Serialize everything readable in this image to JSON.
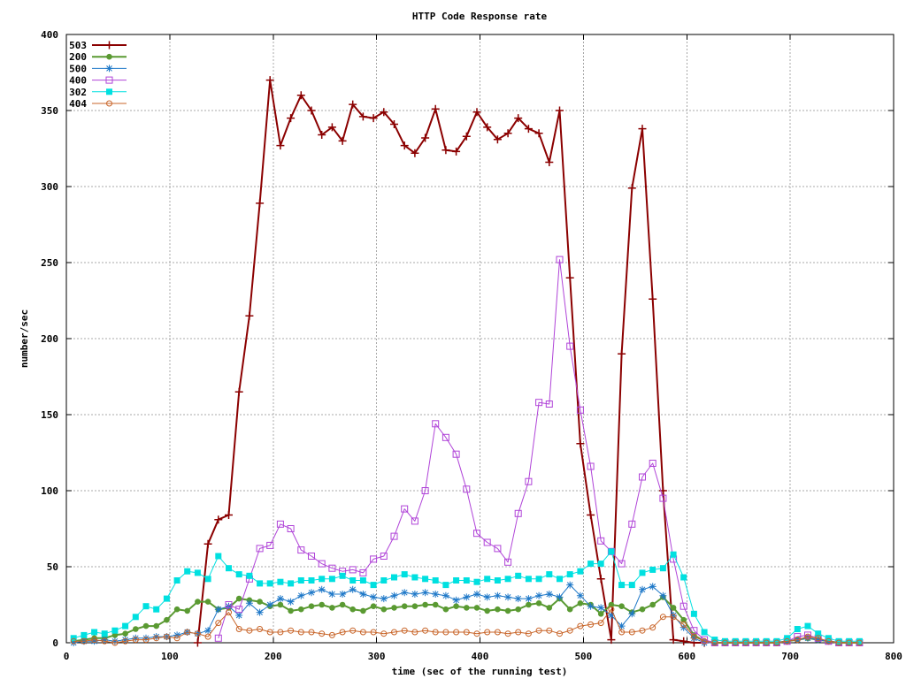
{
  "chart_data": {
    "type": "line",
    "title": "HTTP Code Response rate",
    "xlabel": "time (sec of the running test)",
    "ylabel": "number/sec",
    "xlim": [
      0,
      800
    ],
    "ylim": [
      0,
      400
    ],
    "xticks": [
      0,
      100,
      200,
      300,
      400,
      500,
      600,
      700,
      800
    ],
    "yticks": [
      0,
      50,
      100,
      150,
      200,
      250,
      300,
      350,
      400
    ],
    "grid": true,
    "legend_position": "top-left",
    "x": [
      7,
      17,
      27,
      37,
      47,
      57,
      67,
      77,
      87,
      97,
      107,
      117,
      127,
      137,
      147,
      157,
      167,
      177,
      187,
      197,
      207,
      217,
      227,
      237,
      247,
      257,
      267,
      277,
      287,
      297,
      307,
      317,
      327,
      337,
      347,
      357,
      367,
      377,
      387,
      397,
      407,
      417,
      427,
      437,
      447,
      457,
      467,
      477,
      487,
      497,
      507,
      517,
      527,
      537,
      547,
      557,
      567,
      577,
      587,
      597,
      607,
      617,
      627,
      637,
      647,
      657,
      667,
      677,
      687,
      697,
      707,
      717,
      727,
      737,
      747,
      757,
      767
    ],
    "series": [
      {
        "name": "503",
        "color": "#8b0000",
        "marker": "plus",
        "values": [
          null,
          null,
          null,
          null,
          null,
          null,
          null,
          null,
          null,
          null,
          null,
          null,
          0,
          65,
          81,
          84,
          165,
          215,
          289,
          370,
          327,
          345,
          360,
          350,
          334,
          339,
          330,
          354,
          346,
          345,
          349,
          341,
          327,
          322,
          332,
          351,
          324,
          323,
          333,
          349,
          339,
          331,
          335,
          345,
          338,
          335,
          316,
          350,
          240,
          131,
          84,
          42,
          2,
          190,
          299,
          338,
          226,
          100,
          2,
          1,
          0,
          0,
          null,
          null,
          null,
          null,
          null,
          null,
          null,
          null,
          null,
          null,
          null,
          null,
          null,
          null,
          null
        ]
      },
      {
        "name": "200",
        "color": "#5a9a32",
        "marker": "circle-filled",
        "values": [
          1,
          2,
          3,
          3,
          5,
          6,
          9,
          11,
          11,
          15,
          22,
          21,
          27,
          27,
          22,
          23,
          29,
          28,
          27,
          24,
          25,
          21,
          22,
          24,
          25,
          23,
          25,
          22,
          21,
          24,
          22,
          23,
          24,
          24,
          25,
          25,
          22,
          24,
          23,
          23,
          21,
          22,
          21,
          22,
          25,
          26,
          23,
          29,
          22,
          26,
          25,
          19,
          25,
          24,
          20,
          22,
          25,
          30,
          23,
          15,
          5,
          1,
          0,
          0,
          0,
          0,
          0,
          0,
          0,
          1,
          2,
          3,
          2,
          1,
          0,
          0,
          0
        ]
      },
      {
        "name": "500",
        "color": "#1e78c8",
        "marker": "asterisk",
        "values": [
          0,
          1,
          1,
          2,
          1,
          2,
          3,
          3,
          4,
          4,
          5,
          7,
          6,
          8,
          22,
          24,
          18,
          26,
          20,
          25,
          29,
          27,
          31,
          33,
          35,
          32,
          32,
          35,
          32,
          30,
          29,
          31,
          33,
          32,
          33,
          32,
          31,
          28,
          30,
          32,
          30,
          31,
          30,
          29,
          29,
          31,
          32,
          30,
          38,
          31,
          24,
          23,
          18,
          11,
          19,
          35,
          37,
          31,
          18,
          10,
          3,
          0,
          0,
          0,
          0,
          0,
          0,
          0,
          0,
          1,
          2,
          3,
          2,
          1,
          0,
          0,
          0
        ]
      },
      {
        "name": "400",
        "color": "#b044d8",
        "marker": "square-open",
        "values": [
          null,
          null,
          null,
          null,
          null,
          null,
          null,
          null,
          null,
          null,
          null,
          null,
          null,
          null,
          3,
          25,
          22,
          42,
          62,
          64,
          78,
          75,
          61,
          57,
          52,
          49,
          47,
          48,
          46,
          55,
          57,
          70,
          88,
          80,
          100,
          144,
          135,
          124,
          101,
          72,
          66,
          62,
          53,
          85,
          106,
          158,
          157,
          252,
          195,
          153,
          116,
          67,
          60,
          52,
          78,
          109,
          118,
          95,
          55,
          24,
          8,
          2,
          0,
          0,
          0,
          0,
          0,
          0,
          0,
          1,
          4,
          5,
          3,
          1,
          0,
          0,
          0
        ]
      },
      {
        "name": "302",
        "color": "#00e0e0",
        "marker": "square-filled",
        "values": [
          3,
          5,
          7,
          6,
          8,
          11,
          17,
          24,
          22,
          29,
          41,
          47,
          46,
          42,
          57,
          49,
          45,
          44,
          39,
          39,
          40,
          39,
          41,
          41,
          42,
          42,
          44,
          41,
          41,
          38,
          41,
          43,
          45,
          43,
          42,
          41,
          38,
          41,
          41,
          40,
          42,
          41,
          42,
          44,
          42,
          42,
          45,
          42,
          45,
          47,
          52,
          52,
          60,
          38,
          38,
          46,
          48,
          49,
          58,
          43,
          19,
          7,
          2,
          1,
          1,
          1,
          1,
          1,
          1,
          3,
          9,
          11,
          6,
          3,
          1,
          1,
          1
        ]
      },
      {
        "name": "404",
        "color": "#c86428",
        "marker": "circle-open",
        "values": [
          1,
          1,
          2,
          1,
          0,
          1,
          2,
          2,
          3,
          4,
          3,
          7,
          6,
          4,
          13,
          20,
          9,
          8,
          9,
          7,
          7,
          8,
          7,
          7,
          6,
          5,
          7,
          8,
          7,
          7,
          6,
          7,
          8,
          7,
          8,
          7,
          7,
          7,
          7,
          6,
          7,
          7,
          6,
          7,
          6,
          8,
          8,
          6,
          8,
          11,
          12,
          13,
          22,
          7,
          7,
          8,
          10,
          17,
          17,
          12,
          4,
          1,
          0,
          0,
          0,
          0,
          0,
          0,
          0,
          1,
          2,
          4,
          3,
          1,
          0,
          0,
          0
        ]
      }
    ]
  }
}
